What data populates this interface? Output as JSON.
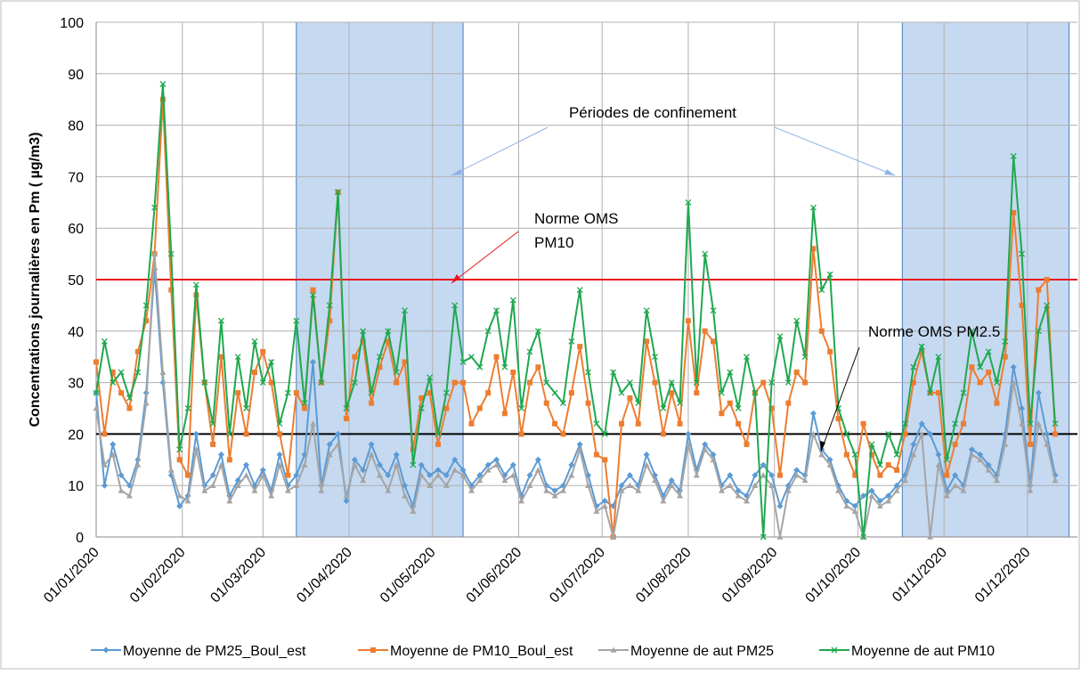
{
  "chart_data": {
    "type": "line",
    "ylabel": "Concentrations journalières  en  Pm ( µg/m3)",
    "x": [
      "2020-01-01",
      "2020-01-04",
      "2020-01-07",
      "2020-01-10",
      "2020-01-13",
      "2020-01-16",
      "2020-01-19",
      "2020-01-22",
      "2020-01-25",
      "2020-01-28",
      "2020-01-31",
      "2020-02-03",
      "2020-02-06",
      "2020-02-09",
      "2020-02-12",
      "2020-02-15",
      "2020-02-18",
      "2020-02-21",
      "2020-02-24",
      "2020-02-27",
      "2020-03-01",
      "2020-03-04",
      "2020-03-07",
      "2020-03-10",
      "2020-03-13",
      "2020-03-16",
      "2020-03-19",
      "2020-03-22",
      "2020-03-25",
      "2020-03-28",
      "2020-03-31",
      "2020-04-03",
      "2020-04-06",
      "2020-04-09",
      "2020-04-12",
      "2020-04-15",
      "2020-04-18",
      "2020-04-21",
      "2020-04-24",
      "2020-04-27",
      "2020-04-30",
      "2020-05-03",
      "2020-05-06",
      "2020-05-09",
      "2020-05-12",
      "2020-05-15",
      "2020-05-18",
      "2020-05-21",
      "2020-05-24",
      "2020-05-27",
      "2020-05-30",
      "2020-06-02",
      "2020-06-05",
      "2020-06-08",
      "2020-06-11",
      "2020-06-14",
      "2020-06-17",
      "2020-06-20",
      "2020-06-23",
      "2020-06-26",
      "2020-06-29",
      "2020-07-02",
      "2020-07-05",
      "2020-07-08",
      "2020-07-11",
      "2020-07-14",
      "2020-07-17",
      "2020-07-20",
      "2020-07-23",
      "2020-07-26",
      "2020-07-29",
      "2020-08-01",
      "2020-08-04",
      "2020-08-07",
      "2020-08-10",
      "2020-08-13",
      "2020-08-16",
      "2020-08-19",
      "2020-08-22",
      "2020-08-25",
      "2020-08-28",
      "2020-08-31",
      "2020-09-03",
      "2020-09-06",
      "2020-09-09",
      "2020-09-12",
      "2020-09-15",
      "2020-09-18",
      "2020-09-21",
      "2020-09-24",
      "2020-09-27",
      "2020-09-30",
      "2020-10-03",
      "2020-10-06",
      "2020-10-09",
      "2020-10-12",
      "2020-10-15",
      "2020-10-18",
      "2020-10-21",
      "2020-10-24",
      "2020-10-27",
      "2020-10-30",
      "2020-11-02",
      "2020-11-05",
      "2020-11-08",
      "2020-11-11",
      "2020-11-14",
      "2020-11-17",
      "2020-11-20",
      "2020-11-23",
      "2020-11-26",
      "2020-11-29",
      "2020-12-02",
      "2020-12-05",
      "2020-12-08",
      "2020-12-11"
    ],
    "series": [
      {
        "name": "Moyenne de PM25_Boul_est",
        "color": "#5b9bd5",
        "marker": "diamond",
        "values": [
          28,
          10,
          18,
          12,
          10,
          15,
          28,
          52,
          30,
          12,
          6,
          8,
          20,
          10,
          12,
          16,
          8,
          11,
          14,
          10,
          13,
          9,
          16,
          10,
          12,
          16,
          34,
          10,
          18,
          20,
          7,
          15,
          13,
          18,
          14,
          12,
          16,
          10,
          6,
          14,
          12,
          13,
          12,
          15,
          13,
          10,
          12,
          14,
          15,
          12,
          14,
          8,
          12,
          15,
          10,
          9,
          10,
          14,
          18,
          12,
          6,
          7,
          6,
          10,
          12,
          10,
          16,
          12,
          8,
          11,
          9,
          20,
          13,
          18,
          16,
          10,
          12,
          9,
          8,
          12,
          14,
          12,
          6,
          10,
          13,
          12,
          24,
          17,
          15,
          10,
          7,
          6,
          8,
          9,
          7,
          8,
          10,
          12,
          18,
          22,
          20,
          16,
          9,
          12,
          10,
          17,
          16,
          14,
          12,
          20,
          33,
          25,
          10,
          28,
          20,
          12
        ]
      },
      {
        "name": "Moyenne de PM10_Boul_est",
        "color": "#ed7d31",
        "marker": "square",
        "values": [
          34,
          20,
          32,
          28,
          25,
          36,
          42,
          55,
          85,
          48,
          15,
          12,
          47,
          30,
          18,
          35,
          15,
          28,
          20,
          32,
          36,
          30,
          20,
          12,
          28,
          25,
          48,
          30,
          42,
          67,
          23,
          35,
          38,
          26,
          33,
          38,
          30,
          34,
          17,
          27,
          28,
          18,
          25,
          30,
          30,
          22,
          25,
          28,
          35,
          24,
          32,
          20,
          30,
          33,
          26,
          22,
          20,
          28,
          37,
          26,
          16,
          15,
          0,
          22,
          27,
          22,
          38,
          30,
          20,
          28,
          22,
          42,
          28,
          40,
          38,
          24,
          26,
          22,
          18,
          28,
          30,
          25,
          12,
          26,
          32,
          30,
          56,
          40,
          36,
          23,
          16,
          12,
          22,
          16,
          12,
          14,
          13,
          20,
          30,
          36,
          28,
          28,
          12,
          18,
          22,
          33,
          30,
          32,
          26,
          35,
          63,
          45,
          18,
          48,
          50,
          20
        ]
      },
      {
        "name": "Moyenne de aut PM25",
        "color": "#a5a5a5",
        "marker": "triangle",
        "values": [
          25,
          14,
          16,
          9,
          8,
          14,
          26,
          55,
          32,
          13,
          8,
          7,
          17,
          9,
          10,
          14,
          7,
          10,
          12,
          9,
          12,
          8,
          14,
          9,
          10,
          14,
          22,
          9,
          16,
          18,
          8,
          14,
          11,
          16,
          12,
          9,
          14,
          8,
          5,
          12,
          10,
          12,
          10,
          13,
          12,
          9,
          11,
          13,
          14,
          11,
          12,
          7,
          10,
          13,
          9,
          8,
          9,
          12,
          17,
          10,
          5,
          6,
          0,
          9,
          10,
          9,
          14,
          11,
          7,
          10,
          8,
          18,
          12,
          17,
          15,
          9,
          10,
          8,
          7,
          10,
          12,
          10,
          0,
          9,
          12,
          11,
          20,
          16,
          14,
          9,
          6,
          5,
          0,
          8,
          6,
          7,
          9,
          11,
          16,
          20,
          0,
          14,
          8,
          10,
          9,
          16,
          15,
          13,
          11,
          18,
          30,
          22,
          9,
          22,
          18,
          11
        ]
      },
      {
        "name": "Moyenne de aut PM10",
        "color": "#1fa84f",
        "marker": "x",
        "values": [
          28,
          38,
          30,
          32,
          27,
          32,
          45,
          64,
          88,
          55,
          17,
          25,
          49,
          30,
          22,
          42,
          20,
          35,
          25,
          38,
          30,
          34,
          22,
          28,
          42,
          26,
          47,
          30,
          45,
          67,
          25,
          30,
          40,
          28,
          35,
          40,
          32,
          44,
          14,
          25,
          31,
          20,
          28,
          45,
          34,
          35,
          33,
          40,
          44,
          33,
          46,
          25,
          36,
          40,
          30,
          28,
          26,
          38,
          48,
          32,
          22,
          20,
          32,
          28,
          30,
          26,
          44,
          35,
          25,
          30,
          26,
          65,
          30,
          55,
          44,
          28,
          32,
          25,
          35,
          28,
          0,
          30,
          39,
          30,
          42,
          35,
          64,
          48,
          51,
          25,
          20,
          16,
          0,
          18,
          14,
          20,
          16,
          22,
          33,
          37,
          28,
          35,
          15,
          22,
          28,
          40,
          33,
          36,
          30,
          38,
          74,
          55,
          22,
          40,
          45,
          22
        ]
      }
    ],
    "xlim": [
      "2020-01-01",
      "2020-12-19"
    ],
    "xticks": [
      {
        "value": "2020-01-01",
        "label": "01/01/2020"
      },
      {
        "value": "2020-02-01",
        "label": "01/02/2020"
      },
      {
        "value": "2020-03-01",
        "label": "01/03/2020"
      },
      {
        "value": "2020-04-01",
        "label": "01/04/2020"
      },
      {
        "value": "2020-05-01",
        "label": "01/05/2020"
      },
      {
        "value": "2020-06-01",
        "label": "01/06/2020"
      },
      {
        "value": "2020-07-01",
        "label": "01/07/2020"
      },
      {
        "value": "2020-08-01",
        "label": "01/08/2020"
      },
      {
        "value": "2020-09-01",
        "label": "01/09/2020"
      },
      {
        "value": "2020-10-01",
        "label": "01/10/2020"
      },
      {
        "value": "2020-11-01",
        "label": "01/11/2020"
      },
      {
        "value": "2020-12-01",
        "label": "01/12/2020"
      }
    ],
    "ylim": [
      0,
      100
    ],
    "yticks": [
      0,
      10,
      20,
      30,
      40,
      50,
      60,
      70,
      80,
      90,
      100
    ],
    "grid": true,
    "hlines": [
      {
        "value": 50,
        "color": "#e8151a"
      },
      {
        "value": 20,
        "color": "#000000"
      }
    ],
    "shaded_periods": [
      {
        "start": "2020-03-13",
        "end": "2020-05-12"
      },
      {
        "start": "2020-10-17",
        "end": "2020-12-16"
      }
    ],
    "shade_color": "#c5d9f1",
    "annotations": {
      "confinement": "Périodes de confinement",
      "pm10": [
        "Norme OMS",
        "PM10"
      ],
      "pm25": "Norme OMS PM2.5"
    },
    "legend": "bottom"
  }
}
